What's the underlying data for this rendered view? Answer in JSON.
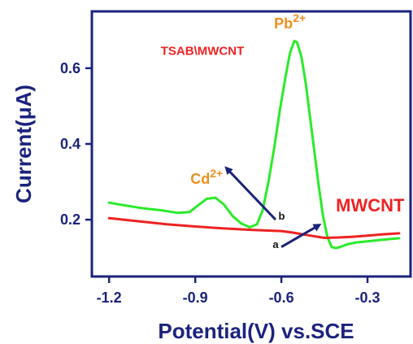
{
  "colors": {
    "axis": "#1b237e",
    "axis_text": "#1b237e",
    "green_curve": "#2bea2b",
    "red_curve": "#ee2222",
    "peak_label": "#ef8f1e",
    "arrow": "#1a2378",
    "background": "#ffffff"
  },
  "chart_data": {
    "type": "line",
    "xlabel": "Potential(V) vs.SCE",
    "ylabel": "Current(μA)",
    "xlim": [
      -1.26,
      -0.15
    ],
    "ylim": [
      0.05,
      0.75
    ],
    "xticks": [
      -1.2,
      -0.9,
      -0.6,
      -0.3
    ],
    "xtick_labels": [
      "-1.2",
      "-0.9",
      "-0.6",
      "-0.3"
    ],
    "yticks": [
      0.2,
      0.4,
      0.6
    ],
    "ytick_labels": [
      "0.2",
      "0.4",
      "0.6"
    ],
    "grid": false,
    "series": [
      {
        "name": "TSAB\\MWCNT",
        "color": "#2bea2b",
        "x": [
          -1.2,
          -1.14,
          -1.08,
          -1.02,
          -0.96,
          -0.92,
          -0.89,
          -0.86,
          -0.83,
          -0.8,
          -0.77,
          -0.74,
          -0.71,
          -0.685,
          -0.665,
          -0.645,
          -0.625,
          -0.605,
          -0.585,
          -0.57,
          -0.555,
          -0.545,
          -0.53,
          -0.515,
          -0.5,
          -0.485,
          -0.47,
          -0.455,
          -0.44,
          -0.425,
          -0.41,
          -0.395,
          -0.37,
          -0.34,
          -0.3,
          -0.26,
          -0.22,
          -0.19
        ],
        "y": [
          0.245,
          0.237,
          0.23,
          0.225,
          0.218,
          0.22,
          0.238,
          0.255,
          0.258,
          0.24,
          0.21,
          0.19,
          0.18,
          0.188,
          0.225,
          0.3,
          0.39,
          0.49,
          0.58,
          0.64,
          0.672,
          0.668,
          0.63,
          0.56,
          0.47,
          0.38,
          0.29,
          0.21,
          0.155,
          0.128,
          0.125,
          0.128,
          0.135,
          0.14,
          0.143,
          0.146,
          0.149,
          0.151
        ]
      },
      {
        "name": "MWCNT",
        "color": "#ee2222",
        "x": [
          -1.2,
          -1.1,
          -1.0,
          -0.9,
          -0.8,
          -0.7,
          -0.6,
          -0.56,
          -0.5,
          -0.45,
          -0.4,
          -0.35,
          -0.3,
          -0.25,
          -0.19
        ],
        "y": [
          0.204,
          0.196,
          0.188,
          0.182,
          0.177,
          0.173,
          0.17,
          0.166,
          0.158,
          0.152,
          0.153,
          0.155,
          0.158,
          0.161,
          0.164
        ]
      }
    ],
    "annotations": [
      {
        "key": "pb",
        "text": "Pb",
        "sup": "2+",
        "x": -0.57,
        "y": 0.705
      },
      {
        "key": "cd",
        "text": "Cd",
        "sup": "2+",
        "x": -0.86,
        "y": 0.295
      },
      {
        "key": "tsab",
        "text": "TSAB\\MWCNT",
        "x": -1.02,
        "y": 0.635
      },
      {
        "key": "mwcnt",
        "text": "MWCNT",
        "x": -0.41,
        "y": 0.222
      },
      {
        "key": "a",
        "text": "a",
        "x": -0.62,
        "y": 0.125
      },
      {
        "key": "b",
        "text": "b",
        "x": -0.61,
        "y": 0.2
      }
    ],
    "arrows": [
      {
        "key": "arrow-a",
        "from": [
          -0.6,
          0.128
        ],
        "to": [
          -0.47,
          0.185
        ]
      },
      {
        "key": "arrow-b",
        "from": [
          -0.62,
          0.2
        ],
        "to": [
          -0.79,
          0.335
        ]
      }
    ]
  }
}
